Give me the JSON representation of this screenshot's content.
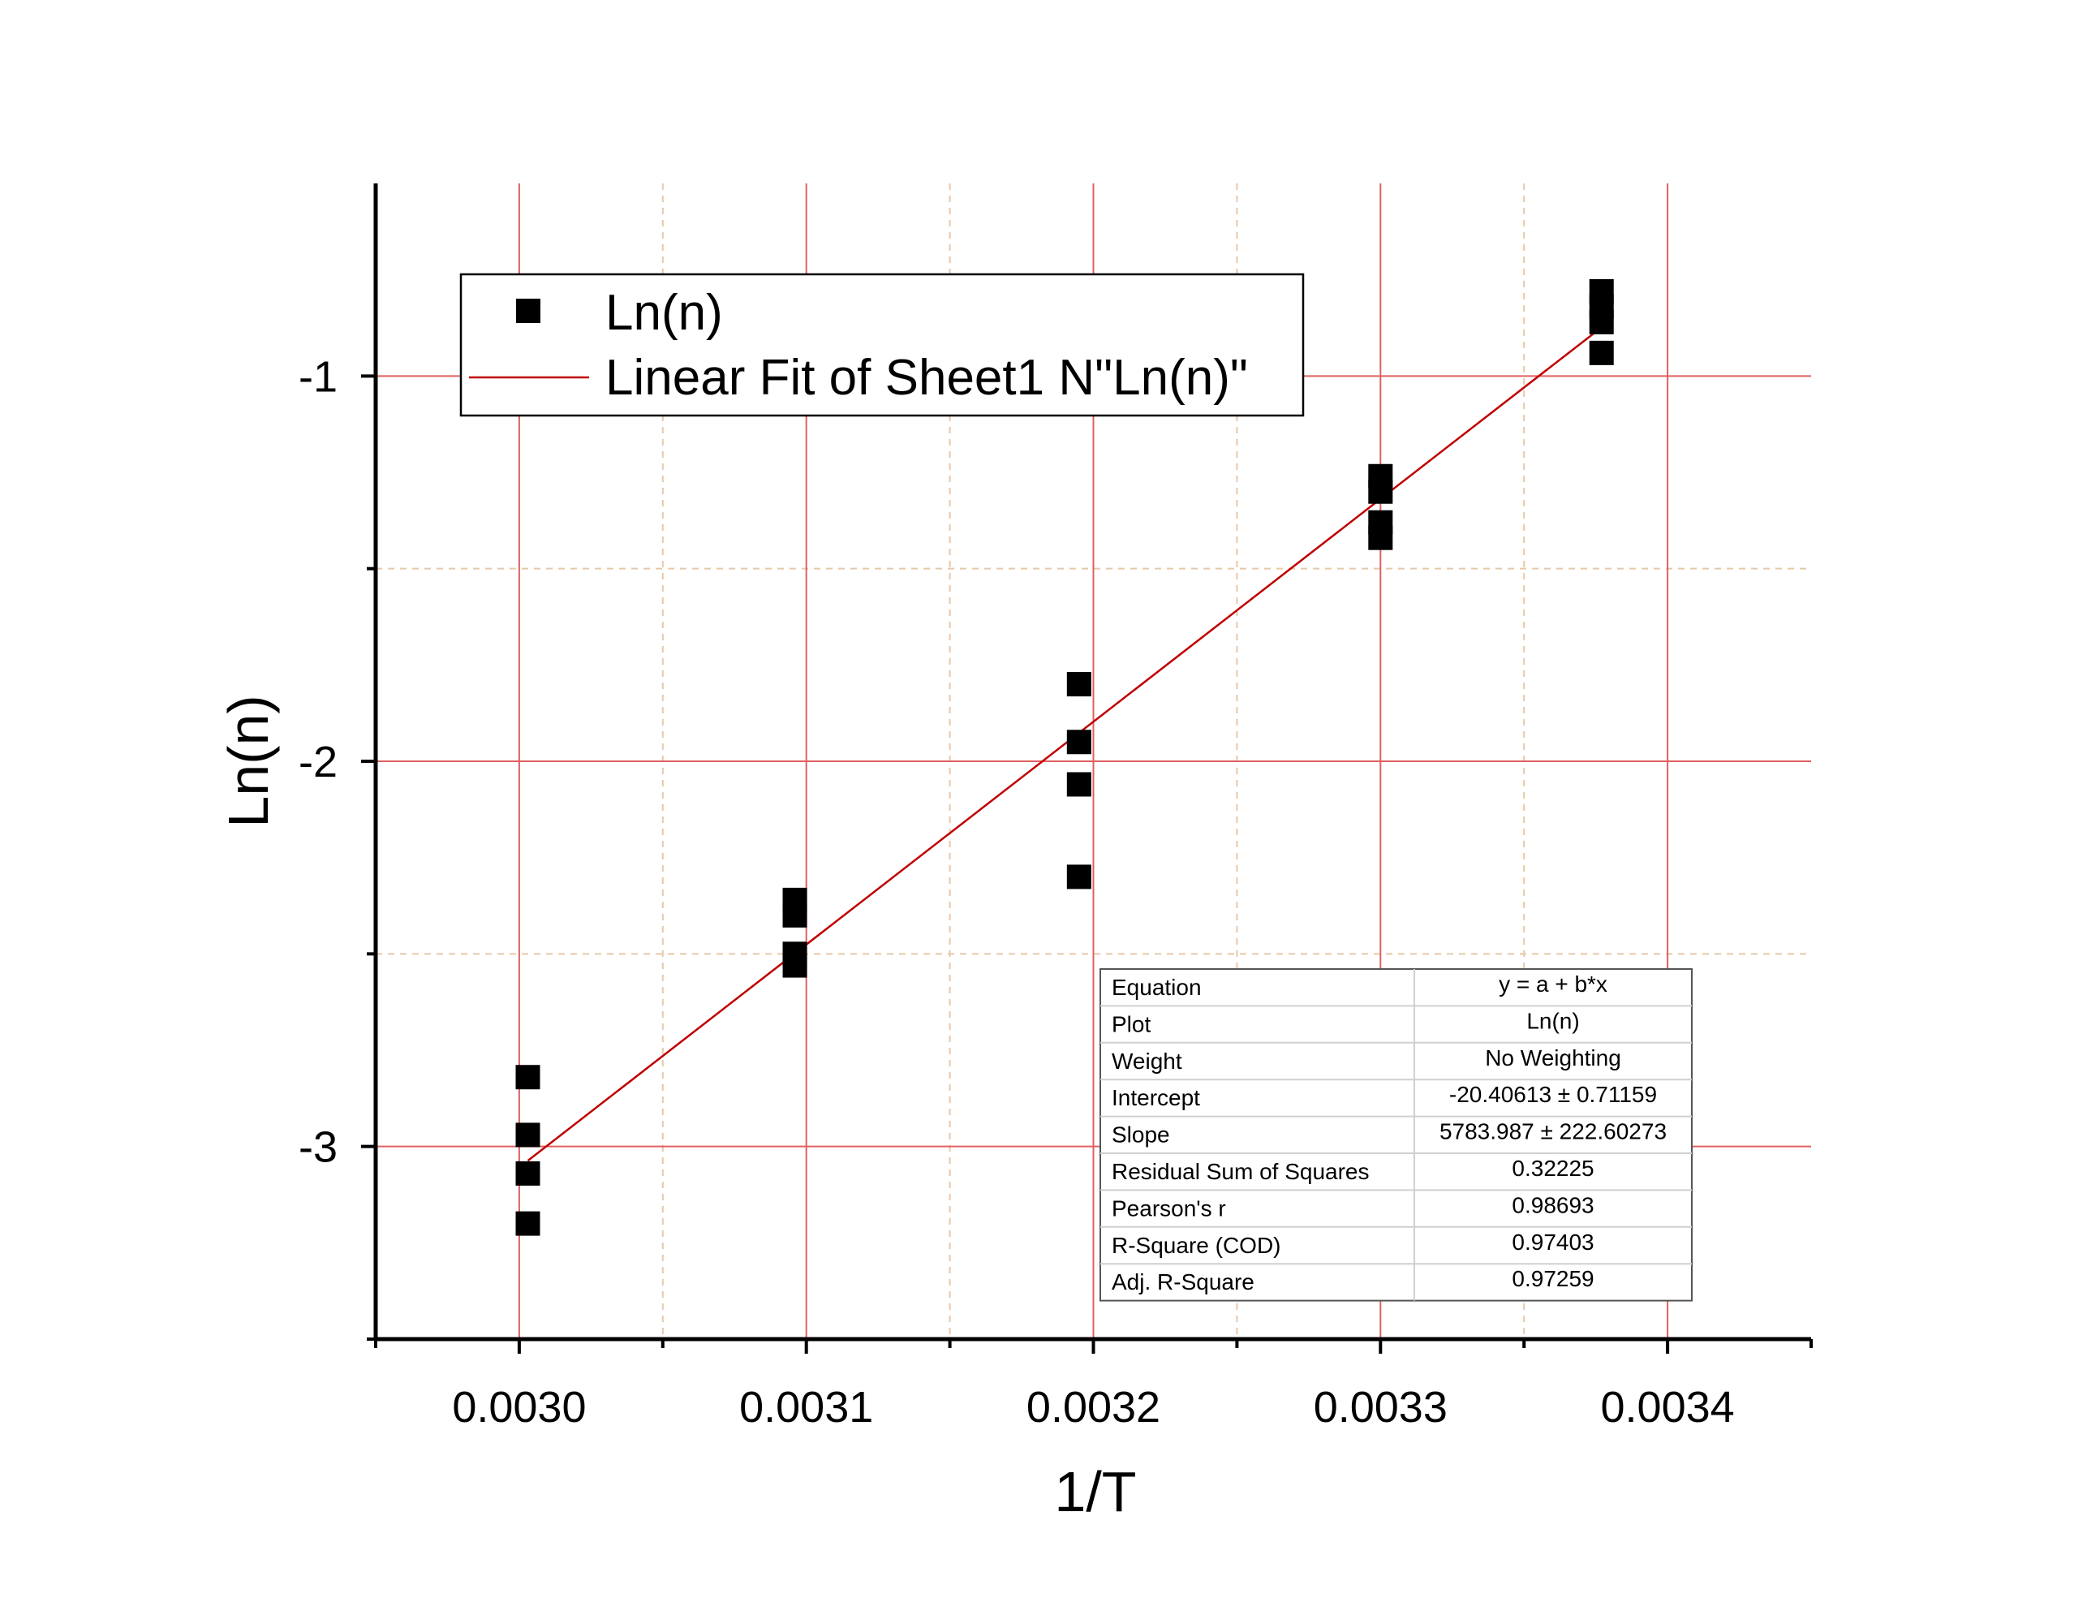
{
  "chart_data": {
    "type": "scatter",
    "xlabel": "1/T",
    "ylabel": "Ln(n)",
    "xlim": [
      0.00295,
      0.00345
    ],
    "ylim": [
      -3.5,
      -0.5
    ],
    "x_ticks": [
      0.003,
      0.0031,
      0.0032,
      0.0033,
      0.0034
    ],
    "x_tick_labels": [
      "0.0030",
      "0.0031",
      "0.0032",
      "0.0033",
      "0.0034"
    ],
    "x_minor_ticks": [
      0.00295,
      0.00305,
      0.00315,
      0.00325,
      0.00335,
      0.00345
    ],
    "y_ticks": [
      -3,
      -2,
      -1
    ],
    "y_tick_labels": [
      "-3",
      "-2",
      "-1"
    ],
    "y_minor_ticks": [
      -3.5,
      -2.5,
      -1.5
    ],
    "grid": true,
    "legend_position": "top-left",
    "legend": [
      {
        "label": "Ln(n)",
        "kind": "marker"
      },
      {
        "label": "Linear Fit of Sheet1 N\"Ln(n)\"",
        "kind": "line"
      }
    ],
    "series": [
      {
        "name": "Ln(n)",
        "marker": "square",
        "color": "#000000",
        "points": [
          {
            "x": 0.003003,
            "y": -2.82
          },
          {
            "x": 0.003003,
            "y": -2.97
          },
          {
            "x": 0.003003,
            "y": -3.07
          },
          {
            "x": 0.003003,
            "y": -3.2
          },
          {
            "x": 0.003096,
            "y": -2.36
          },
          {
            "x": 0.003096,
            "y": -2.4
          },
          {
            "x": 0.003096,
            "y": -2.5
          },
          {
            "x": 0.003096,
            "y": -2.53
          },
          {
            "x": 0.003195,
            "y": -1.8
          },
          {
            "x": 0.003195,
            "y": -1.95
          },
          {
            "x": 0.003195,
            "y": -2.06
          },
          {
            "x": 0.003195,
            "y": -2.3
          },
          {
            "x": 0.0033,
            "y": -1.26
          },
          {
            "x": 0.0033,
            "y": -1.3
          },
          {
            "x": 0.0033,
            "y": -1.38
          },
          {
            "x": 0.0033,
            "y": -1.42
          },
          {
            "x": 0.003377,
            "y": -0.78
          },
          {
            "x": 0.003377,
            "y": -0.82
          },
          {
            "x": 0.003377,
            "y": -0.86
          },
          {
            "x": 0.003377,
            "y": -0.94
          }
        ]
      },
      {
        "name": "Linear Fit of Sheet1 N\"Ln(n)\"",
        "kind": "fit_line",
        "color": "#c00000",
        "intercept": -20.40613,
        "slope": 5783.987,
        "x_range": [
          0.003003,
          0.003377
        ]
      }
    ],
    "fit_table": [
      {
        "label": "Equation",
        "value": "y = a + b*x"
      },
      {
        "label": "Plot",
        "value": "Ln(n)"
      },
      {
        "label": "Weight",
        "value": "No Weighting"
      },
      {
        "label": "Intercept",
        "value": "-20.40613 ± 0.71159"
      },
      {
        "label": "Slope",
        "value": "5783.987 ± 222.60273"
      },
      {
        "label": "Residual Sum of Squares",
        "value": "0.32225"
      },
      {
        "label": "Pearson's r",
        "value": "0.98693"
      },
      {
        "label": "R-Square (COD)",
        "value": "0.97403"
      },
      {
        "label": "Adj. R-Square",
        "value": "0.97259"
      }
    ],
    "colors": {
      "major_grid": "#e06060",
      "minor_grid": "#e8c8a8",
      "fit_line": "#c00000",
      "axis": "#000000",
      "marker": "#000000"
    }
  }
}
